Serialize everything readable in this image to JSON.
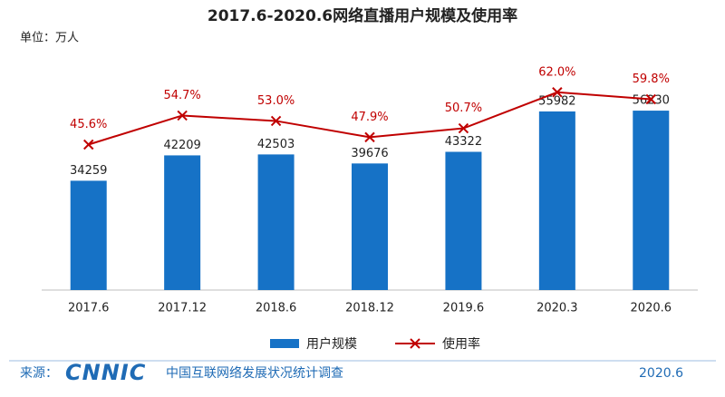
{
  "chart_data": {
    "type": "bar",
    "title": "2017.6-2020.6网络直播用户规模及使用率",
    "unit_label": "单位：万人",
    "categories": [
      "2017.6",
      "2017.12",
      "2018.6",
      "2018.12",
      "2019.6",
      "2020.3",
      "2020.6"
    ],
    "series": [
      {
        "name": "用户规模",
        "type": "bar",
        "color": "#1672c6",
        "values": [
          34259,
          42209,
          42503,
          39676,
          43322,
          55982,
          56230
        ]
      },
      {
        "name": "使用率",
        "type": "line",
        "axis": "y2",
        "color": "#c00000",
        "values": [
          45.6,
          54.7,
          53.0,
          47.9,
          50.7,
          62.0,
          59.8
        ],
        "value_labels": [
          "45.6%",
          "54.7%",
          "53.0%",
          "47.9%",
          "50.7%",
          "62.0%",
          "59.8%"
        ]
      }
    ],
    "ylim": [
      0,
      75000
    ],
    "y2lim": [
      0,
      75
    ],
    "source_prefix": "来源：",
    "source_logo": "CNNIC",
    "source_text": "中国互联网络发展状况统计调查",
    "source_date": "2020.6"
  }
}
